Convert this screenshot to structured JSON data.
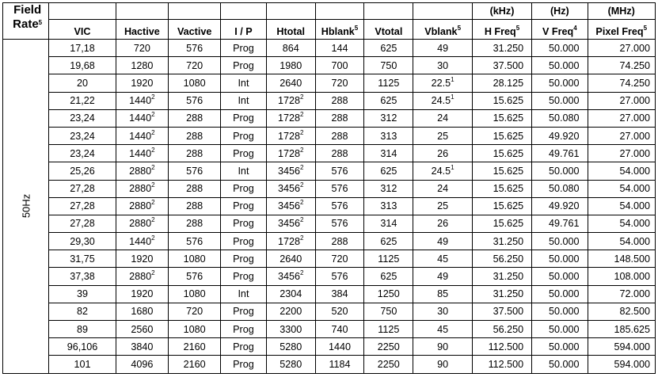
{
  "header": {
    "field_rate": "Field",
    "field_rate_2": "Rate",
    "field_rate_sup": "5",
    "units": [
      "",
      "",
      "",
      "",
      "",
      "",
      "",
      "",
      "(kHz)",
      "(Hz)",
      "(MHz)"
    ],
    "columns": [
      {
        "label": "VIC",
        "sup": ""
      },
      {
        "label": "Hactive",
        "sup": ""
      },
      {
        "label": "Vactive",
        "sup": ""
      },
      {
        "label": "I / P",
        "sup": ""
      },
      {
        "label": "Htotal",
        "sup": ""
      },
      {
        "label": "Hblank",
        "sup": "5"
      },
      {
        "label": "Vtotal",
        "sup": ""
      },
      {
        "label": "Vblank",
        "sup": "5"
      },
      {
        "label": "H Freq",
        "sup": "5"
      },
      {
        "label": "V Freq",
        "sup": "4"
      },
      {
        "label": "Pixel Freq",
        "sup": "5"
      }
    ]
  },
  "group_label": "50Hz",
  "rows": [
    {
      "vic": "17,18",
      "hactive": "720",
      "hactive_sup": "",
      "vactive": "576",
      "ip": "Prog",
      "htotal": "864",
      "htotal_sup": "",
      "hblank": "144",
      "vtotal": "625",
      "vblank": "49",
      "vblank_sup": "",
      "hfreq": "31.250",
      "vfreq": "50.000",
      "pfreq": "27.000"
    },
    {
      "vic": "19,68",
      "hactive": "1280",
      "hactive_sup": "",
      "vactive": "720",
      "ip": "Prog",
      "htotal": "1980",
      "htotal_sup": "",
      "hblank": "700",
      "vtotal": "750",
      "vblank": "30",
      "vblank_sup": "",
      "hfreq": "37.500",
      "vfreq": "50.000",
      "pfreq": "74.250"
    },
    {
      "vic": "20",
      "hactive": "1920",
      "hactive_sup": "",
      "vactive": "1080",
      "ip": "Int",
      "htotal": "2640",
      "htotal_sup": "",
      "hblank": "720",
      "vtotal": "1125",
      "vblank": "22.5",
      "vblank_sup": "1",
      "hfreq": "28.125",
      "vfreq": "50.000",
      "pfreq": "74.250"
    },
    {
      "vic": "21,22",
      "hactive": "1440",
      "hactive_sup": "2",
      "vactive": "576",
      "ip": "Int",
      "htotal": "1728",
      "htotal_sup": "2",
      "hblank": "288",
      "vtotal": "625",
      "vblank": "24.5",
      "vblank_sup": "1",
      "hfreq": "15.625",
      "vfreq": "50.000",
      "pfreq": "27.000"
    },
    {
      "vic": "23,24",
      "hactive": "1440",
      "hactive_sup": "2",
      "vactive": "288",
      "ip": "Prog",
      "htotal": "1728",
      "htotal_sup": "2",
      "hblank": "288",
      "vtotal": "312",
      "vblank": "24",
      "vblank_sup": "",
      "hfreq": "15.625",
      "vfreq": "50.080",
      "pfreq": "27.000"
    },
    {
      "vic": "23,24",
      "hactive": "1440",
      "hactive_sup": "2",
      "vactive": "288",
      "ip": "Prog",
      "htotal": "1728",
      "htotal_sup": "2",
      "hblank": "288",
      "vtotal": "313",
      "vblank": "25",
      "vblank_sup": "",
      "hfreq": "15.625",
      "vfreq": "49.920",
      "pfreq": "27.000"
    },
    {
      "vic": "23,24",
      "hactive": "1440",
      "hactive_sup": "2",
      "vactive": "288",
      "ip": "Prog",
      "htotal": "1728",
      "htotal_sup": "2",
      "hblank": "288",
      "vtotal": "314",
      "vblank": "26",
      "vblank_sup": "",
      "hfreq": "15.625",
      "vfreq": "49.761",
      "pfreq": "27.000"
    },
    {
      "vic": "25,26",
      "hactive": "2880",
      "hactive_sup": "2",
      "vactive": "576",
      "ip": "Int",
      "htotal": "3456",
      "htotal_sup": "2",
      "hblank": "576",
      "vtotal": "625",
      "vblank": "24.5",
      "vblank_sup": "1",
      "hfreq": "15.625",
      "vfreq": "50.000",
      "pfreq": "54.000"
    },
    {
      "vic": "27,28",
      "hactive": "2880",
      "hactive_sup": "2",
      "vactive": "288",
      "ip": "Prog",
      "htotal": "3456",
      "htotal_sup": "2",
      "hblank": "576",
      "vtotal": "312",
      "vblank": "24",
      "vblank_sup": "",
      "hfreq": "15.625",
      "vfreq": "50.080",
      "pfreq": "54.000"
    },
    {
      "vic": "27,28",
      "hactive": "2880",
      "hactive_sup": "2",
      "vactive": "288",
      "ip": "Prog",
      "htotal": "3456",
      "htotal_sup": "2",
      "hblank": "576",
      "vtotal": "313",
      "vblank": "25",
      "vblank_sup": "",
      "hfreq": "15.625",
      "vfreq": "49.920",
      "pfreq": "54.000"
    },
    {
      "vic": "27,28",
      "hactive": "2880",
      "hactive_sup": "2",
      "vactive": "288",
      "ip": "Prog",
      "htotal": "3456",
      "htotal_sup": "2",
      "hblank": "576",
      "vtotal": "314",
      "vblank": "26",
      "vblank_sup": "",
      "hfreq": "15.625",
      "vfreq": "49.761",
      "pfreq": "54.000"
    },
    {
      "vic": "29,30",
      "hactive": "1440",
      "hactive_sup": "2",
      "vactive": "576",
      "ip": "Prog",
      "htotal": "1728",
      "htotal_sup": "2",
      "hblank": "288",
      "vtotal": "625",
      "vblank": "49",
      "vblank_sup": "",
      "hfreq": "31.250",
      "vfreq": "50.000",
      "pfreq": "54.000"
    },
    {
      "vic": "31,75",
      "hactive": "1920",
      "hactive_sup": "",
      "vactive": "1080",
      "ip": "Prog",
      "htotal": "2640",
      "htotal_sup": "",
      "hblank": "720",
      "vtotal": "1125",
      "vblank": "45",
      "vblank_sup": "",
      "hfreq": "56.250",
      "vfreq": "50.000",
      "pfreq": "148.500"
    },
    {
      "vic": "37,38",
      "hactive": "2880",
      "hactive_sup": "2",
      "vactive": "576",
      "ip": "Prog",
      "htotal": "3456",
      "htotal_sup": "2",
      "hblank": "576",
      "vtotal": "625",
      "vblank": "49",
      "vblank_sup": "",
      "hfreq": "31.250",
      "vfreq": "50.000",
      "pfreq": "108.000"
    },
    {
      "vic": "39",
      "hactive": "1920",
      "hactive_sup": "",
      "vactive": "1080",
      "ip": "Int",
      "htotal": "2304",
      "htotal_sup": "",
      "hblank": "384",
      "vtotal": "1250",
      "vblank": "85",
      "vblank_sup": "",
      "hfreq": "31.250",
      "vfreq": "50.000",
      "pfreq": "72.000"
    },
    {
      "vic": "82",
      "hactive": "1680",
      "hactive_sup": "",
      "vactive": "720",
      "ip": "Prog",
      "htotal": "2200",
      "htotal_sup": "",
      "hblank": "520",
      "vtotal": "750",
      "vblank": "30",
      "vblank_sup": "",
      "hfreq": "37.500",
      "vfreq": "50.000",
      "pfreq": "82.500"
    },
    {
      "vic": "89",
      "hactive": "2560",
      "hactive_sup": "",
      "vactive": "1080",
      "ip": "Prog",
      "htotal": "3300",
      "htotal_sup": "",
      "hblank": "740",
      "vtotal": "1125",
      "vblank": "45",
      "vblank_sup": "",
      "hfreq": "56.250",
      "vfreq": "50.000",
      "pfreq": "185.625"
    },
    {
      "vic": "96,106",
      "hactive": "3840",
      "hactive_sup": "",
      "vactive": "2160",
      "ip": "Prog",
      "htotal": "5280",
      "htotal_sup": "",
      "hblank": "1440",
      "vtotal": "2250",
      "vblank": "90",
      "vblank_sup": "",
      "hfreq": "112.500",
      "vfreq": "50.000",
      "pfreq": "594.000"
    },
    {
      "vic": "101",
      "hactive": "4096",
      "hactive_sup": "",
      "vactive": "2160",
      "ip": "Prog",
      "htotal": "5280",
      "htotal_sup": "",
      "hblank": "1184",
      "vtotal": "2250",
      "vblank": "90",
      "vblank_sup": "",
      "hfreq": "112.500",
      "vfreq": "50.000",
      "pfreq": "594.000"
    }
  ]
}
